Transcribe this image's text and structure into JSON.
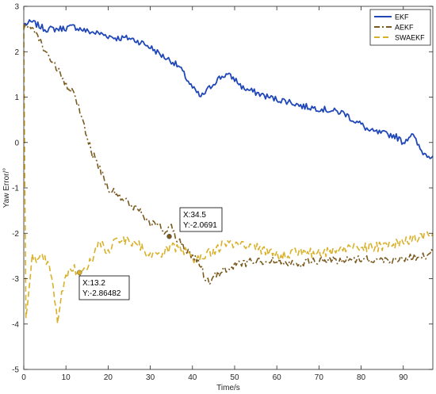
{
  "chart_data": {
    "type": "line",
    "title": "",
    "xlabel": "Time/s",
    "ylabel": "Yaw Error/°",
    "xlim": [
      0,
      97
    ],
    "ylim": [
      -5,
      3
    ],
    "xticks": [
      0,
      10,
      20,
      30,
      40,
      50,
      60,
      70,
      80,
      90
    ],
    "yticks": [
      -5,
      -4,
      -3,
      -2,
      -1,
      0,
      1,
      2,
      3
    ],
    "grid": false,
    "legend_position": "top-right",
    "series": [
      {
        "name": "EKF",
        "color": "#2047b8",
        "style": "solid",
        "noise": 0.07,
        "x": [
          0,
          2,
          5,
          8,
          12,
          15,
          18,
          20,
          22,
          25,
          28,
          30,
          33,
          35,
          37,
          38,
          39,
          40,
          41,
          42,
          44,
          46,
          48,
          50,
          52,
          55,
          58,
          60,
          63,
          66,
          70,
          73,
          76,
          78,
          80,
          82,
          85,
          88,
          90,
          92,
          94,
          95,
          97
        ],
        "y": [
          2.6,
          2.65,
          2.5,
          2.5,
          2.55,
          2.45,
          2.4,
          2.35,
          2.3,
          2.3,
          2.2,
          2.1,
          1.9,
          1.8,
          1.65,
          1.5,
          1.35,
          1.2,
          1.1,
          1.0,
          1.2,
          1.4,
          1.5,
          1.4,
          1.2,
          1.1,
          1.0,
          0.95,
          0.9,
          0.8,
          0.75,
          0.7,
          0.65,
          0.5,
          0.4,
          0.25,
          0.2,
          0.15,
          0.0,
          0.2,
          -0.15,
          -0.25,
          -0.3
        ]
      },
      {
        "name": "AEKF",
        "color": "#7a5a1e",
        "style": "dashdot",
        "noise": 0.09,
        "x": [
          0,
          2,
          4,
          6,
          8,
          10,
          12,
          14,
          16,
          18,
          20,
          22,
          25,
          28,
          30,
          32,
          34,
          35,
          36,
          38,
          40,
          42,
          43,
          44,
          46,
          48,
          50,
          55,
          60,
          65,
          70,
          75,
          80,
          85,
          90,
          95,
          97
        ],
        "y": [
          2.5,
          2.6,
          2.2,
          1.9,
          1.6,
          1.25,
          1.05,
          0.5,
          -0.2,
          -0.55,
          -1.0,
          -1.15,
          -1.35,
          -1.55,
          -1.75,
          -1.85,
          -2.0,
          -1.8,
          -2.1,
          -2.3,
          -2.5,
          -2.7,
          -3.0,
          -3.1,
          -2.9,
          -2.8,
          -2.7,
          -2.6,
          -2.6,
          -2.65,
          -2.6,
          -2.6,
          -2.55,
          -2.6,
          -2.55,
          -2.5,
          -2.4
        ]
      },
      {
        "name": "SWAEKF",
        "color": "#d9b028",
        "style": "dashed",
        "noise": 0.11,
        "x": [
          0,
          0.5,
          1,
          1.5,
          2,
          3,
          4,
          5,
          6,
          7,
          8,
          9,
          10,
          11,
          12,
          13,
          14,
          16,
          18,
          20,
          22,
          25,
          28,
          30,
          32,
          35,
          38,
          40,
          42,
          45,
          48,
          50,
          55,
          60,
          65,
          70,
          75,
          80,
          85,
          90,
          95,
          97
        ],
        "y": [
          2.6,
          -3.9,
          -3.5,
          -3.0,
          -2.5,
          -2.7,
          -2.5,
          -2.6,
          -2.7,
          -3.2,
          -3.9,
          -3.3,
          -2.9,
          -2.85,
          -2.8,
          -2.86,
          -2.8,
          -2.6,
          -2.2,
          -2.4,
          -2.1,
          -2.2,
          -2.3,
          -2.5,
          -2.5,
          -2.3,
          -2.4,
          -2.55,
          -2.5,
          -2.4,
          -2.2,
          -2.25,
          -2.3,
          -2.5,
          -2.4,
          -2.45,
          -2.35,
          -2.3,
          -2.3,
          -2.2,
          -2.05,
          -2.0
        ]
      }
    ],
    "annotations": [
      {
        "name": "datatip-aekf",
        "x": 34.5,
        "y": -2.0691,
        "label_x": "X:34.5",
        "label_y": "Y:-2.0691",
        "series": 1
      },
      {
        "name": "datatip-swaekf",
        "x": 13.2,
        "y": -2.86482,
        "label_x": "X:13.2",
        "label_y": "Y:-2.86482",
        "series": 2
      }
    ]
  }
}
